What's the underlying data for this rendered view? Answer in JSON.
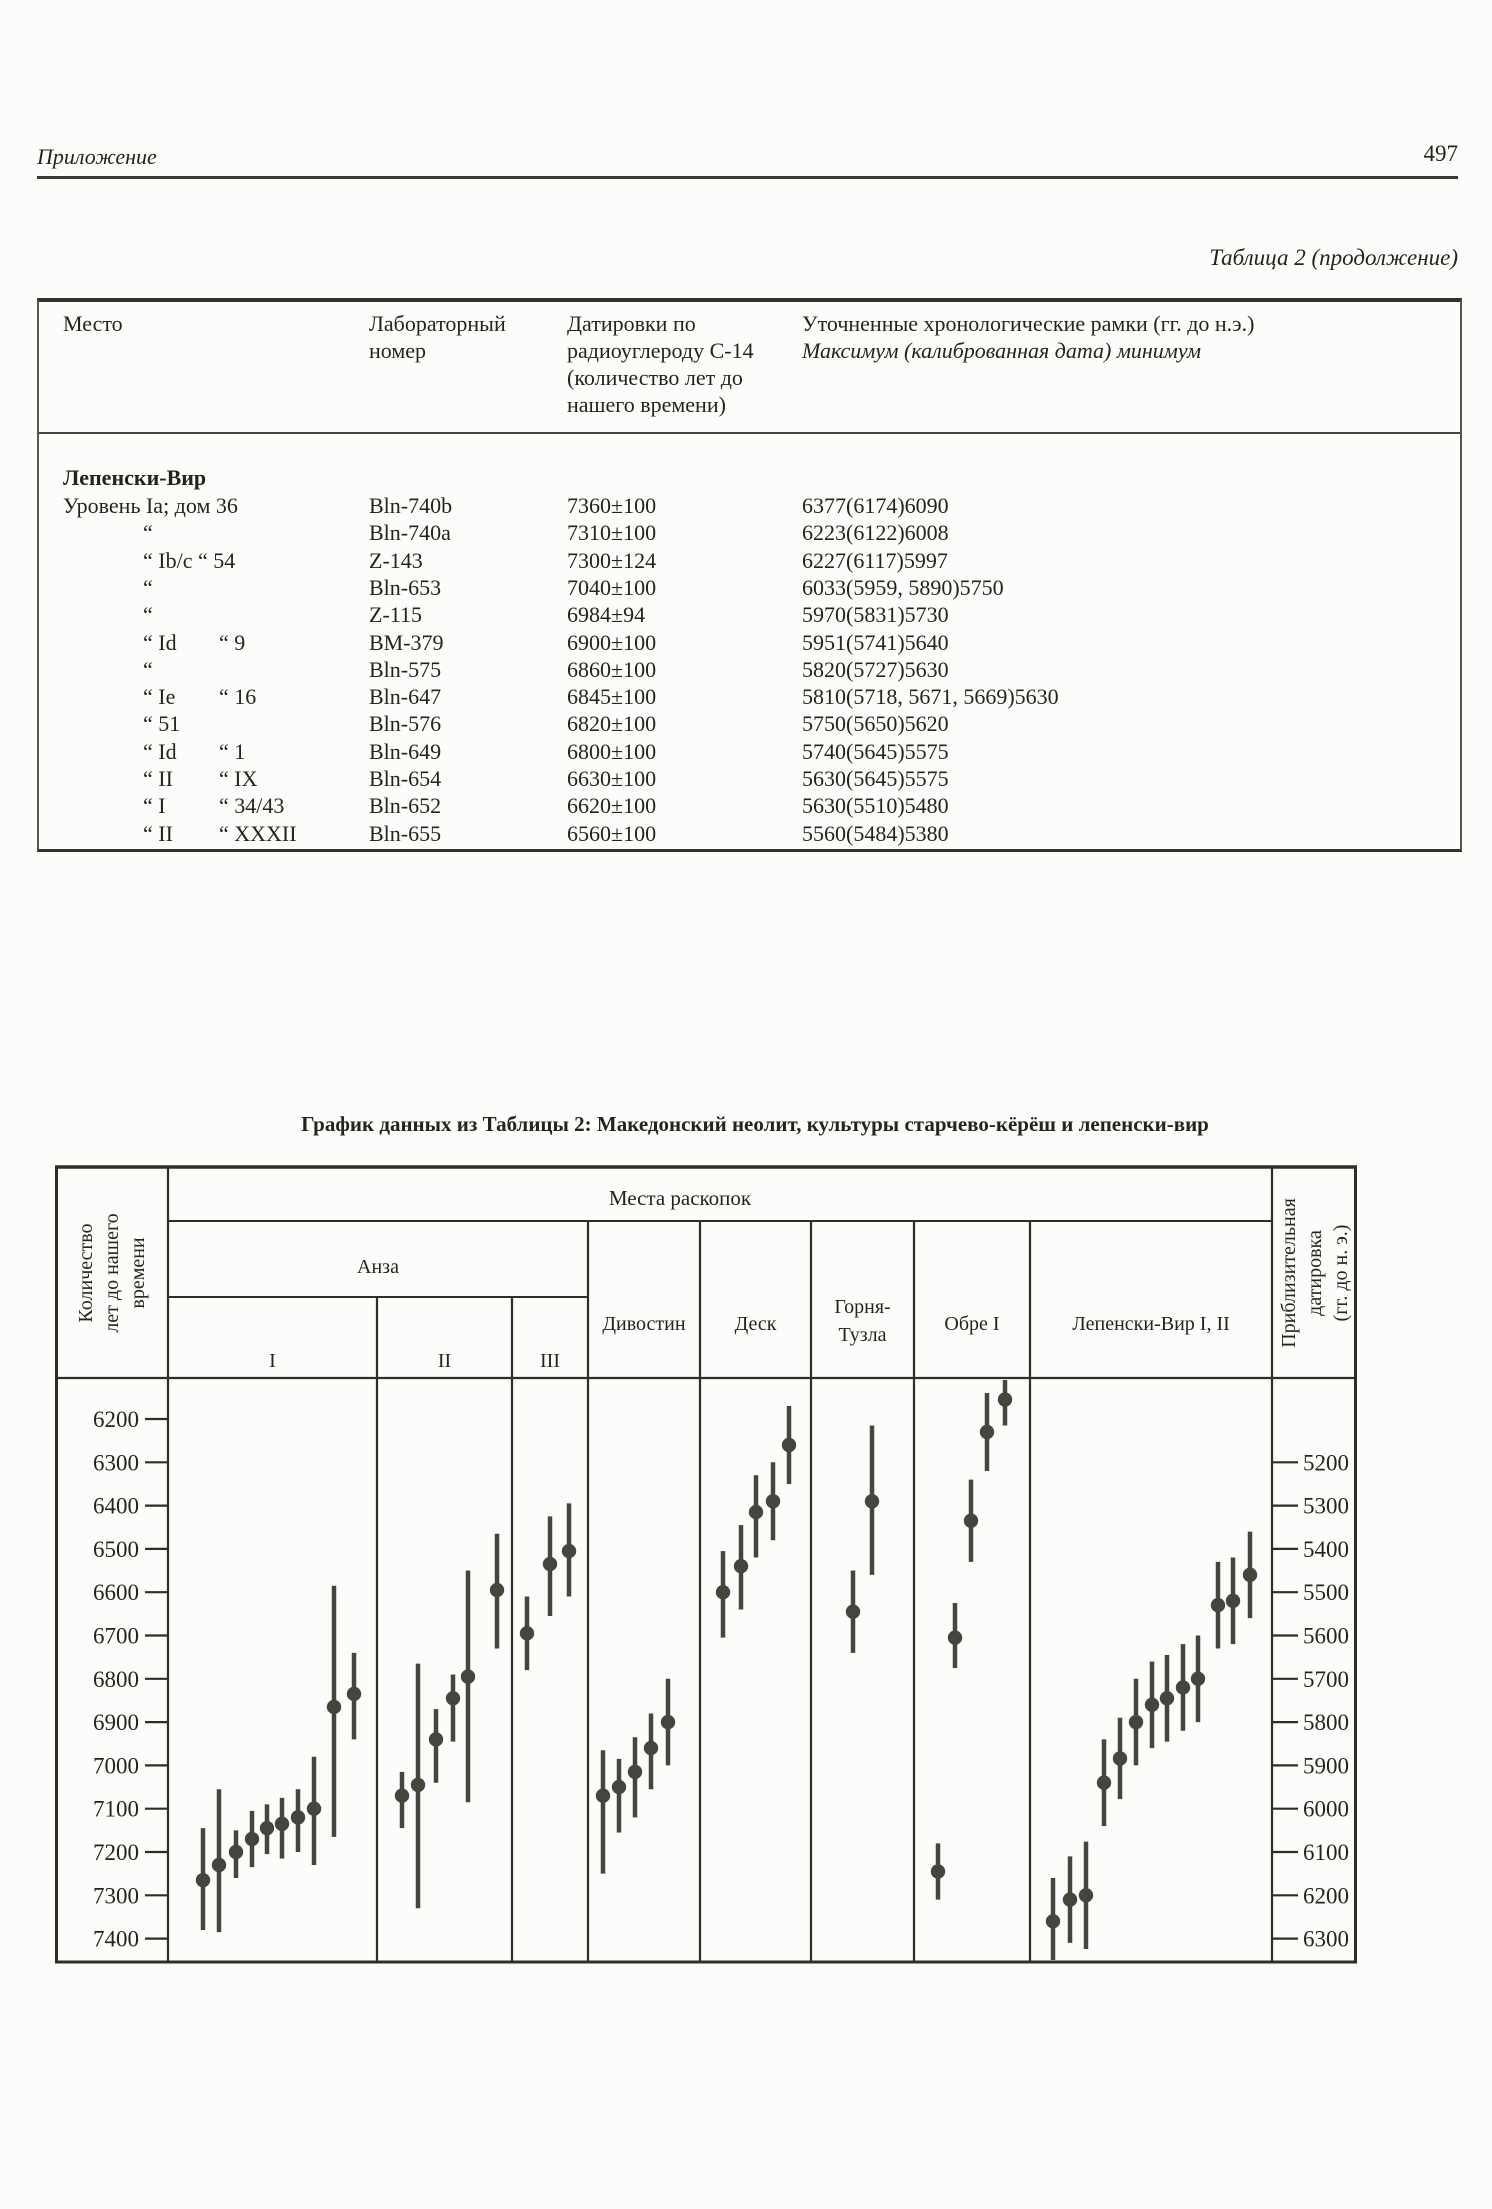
{
  "page": {
    "header_left": "Приложение",
    "page_number": "497",
    "table_caption": "Таблица 2 (продолжение)"
  },
  "table": {
    "col_headers": {
      "place": "Место",
      "lab": [
        "Лабораторный",
        "номер"
      ],
      "c14": [
        "Датировки по",
        "радиоуглероду С-14",
        "(количество лет до",
        "нашего времени)"
      ],
      "calib_line1": "Уточненные хронологические рамки (гг. до н.э.)",
      "calib_line2": "Максимум (калиброванная дата) минимум"
    },
    "section": "Лепенски-Вир",
    "rows": [
      {
        "place": "Уровень Ia; дом 36",
        "place2": "",
        "lab": "Bln-740b",
        "c14": "7360±100",
        "calib": "6377(6174)6090",
        "full": true
      },
      {
        "place": "“",
        "place2": "",
        "lab": "Bln-740a",
        "c14": "7310±100",
        "calib": "6223(6122)6008"
      },
      {
        "place": "“ Ib/c “ 54",
        "place2": "",
        "lab": "Z-143",
        "c14": "7300±124",
        "calib": "6227(6117)5997"
      },
      {
        "place": "“",
        "place2": "",
        "lab": "Bln-653",
        "c14": "7040±100",
        "calib": "6033(5959, 5890)5750"
      },
      {
        "place": "“",
        "place2": "",
        "lab": "Z-115",
        "c14": "6984±94",
        "calib": "5970(5831)5730"
      },
      {
        "place": "“ Id",
        "place2": "“ 9",
        "lab": "BM-379",
        "c14": "6900±100",
        "calib": "5951(5741)5640"
      },
      {
        "place": "“",
        "place2": "",
        "lab": "Bln-575",
        "c14": "6860±100",
        "calib": "5820(5727)5630"
      },
      {
        "place": "“ Ie",
        "place2": "“ 16",
        "lab": "Bln-647",
        "c14": "6845±100",
        "calib": "5810(5718, 5671, 5669)5630"
      },
      {
        "place": "“ 51",
        "place2": "",
        "lab": "Bln-576",
        "c14": "6820±100",
        "calib": "5750(5650)5620"
      },
      {
        "place": "“ Id",
        "place2": "“ 1",
        "lab": "Bln-649",
        "c14": "6800±100",
        "calib": "5740(5645)5575"
      },
      {
        "place": "“ II",
        "place2": "“ IX",
        "lab": "Bln-654",
        "c14": "6630±100",
        "calib": "5630(5645)5575"
      },
      {
        "place": "“ I",
        "place2": "“ 34/43",
        "lab": "Bln-652",
        "c14": "6620±100",
        "calib": "5630(5510)5480"
      },
      {
        "place": "“ II",
        "place2": "“ XXXII",
        "lab": "Bln-655",
        "c14": "6560±100",
        "calib": "5560(5484)5380"
      }
    ]
  },
  "chart_title": "График данных из Таблицы 2: Македонский неолит, культуры старчево-кёрёш и лепенски-вир",
  "chart_data": {
    "type": "scatter",
    "subtype": "dated-samples-with-error-bars",
    "title": "График данных из Таблицы 2: Македонский неолит, культуры старчево-кёрёш и лепенски-вир",
    "corner_header": "Места раскопок",
    "ylabel_left_lines": [
      "Количество",
      "лет до нашего",
      "времени"
    ],
    "ylabel_right_lines": [
      "Приблизительная",
      "датировка",
      "(гг. до н. э.)"
    ],
    "y_left_ticks": [
      6200,
      6300,
      6400,
      6500,
      6600,
      6700,
      6800,
      6900,
      7000,
      7100,
      7200,
      7300,
      7400
    ],
    "y_right_ticks": [
      5200,
      5300,
      5400,
      5500,
      5600,
      5700,
      5800,
      5900,
      6000,
      6100,
      6200,
      6300
    ],
    "y_increases_downward": true,
    "y_right_offset_years": 1100,
    "grid": false,
    "anza_group_label": "Анза",
    "ink_color": "#2e2e28",
    "point_color": "#45453d",
    "columns": [
      {
        "label": "I",
        "group": "Анза",
        "x_range": [
          113,
          322
        ],
        "points": [
          [
            148,
            7265,
            7145,
            7380
          ],
          [
            164,
            7230,
            7055,
            7385
          ],
          [
            181,
            7200,
            7150,
            7260
          ],
          [
            197,
            7170,
            7105,
            7235
          ],
          [
            212,
            7145,
            7090,
            7205
          ],
          [
            227,
            7135,
            7075,
            7215
          ],
          [
            243,
            7120,
            7055,
            7200
          ],
          [
            259,
            7100,
            6980,
            7230
          ],
          [
            279,
            6865,
            6585,
            7165
          ],
          [
            299,
            6835,
            6740,
            6940
          ]
        ]
      },
      {
        "label": "II",
        "group": "Анза",
        "x_range": [
          322,
          457
        ],
        "points": [
          [
            347,
            7070,
            7015,
            7145
          ],
          [
            363,
            7045,
            6765,
            7330
          ],
          [
            381,
            6940,
            6870,
            7040
          ],
          [
            398,
            6845,
            6790,
            6945
          ],
          [
            413,
            6795,
            6550,
            7085
          ],
          [
            442,
            6595,
            6465,
            6730
          ]
        ]
      },
      {
        "label": "III",
        "group": "Анза",
        "x_range": [
          457,
          533
        ],
        "points": [
          [
            472,
            6695,
            6610,
            6780
          ],
          [
            495,
            6535,
            6425,
            6655
          ],
          [
            514,
            6505,
            6395,
            6610
          ]
        ]
      },
      {
        "label": "Дивостин",
        "x_range": [
          533,
          645
        ],
        "points": [
          [
            548,
            7070,
            6965,
            7250
          ],
          [
            564,
            7050,
            6985,
            7155
          ],
          [
            580,
            7015,
            6935,
            7120
          ],
          [
            596,
            6960,
            6880,
            7055
          ],
          [
            613,
            6900,
            6800,
            7000
          ]
        ]
      },
      {
        "label": "Деск",
        "x_range": [
          645,
          756
        ],
        "points": [
          [
            668,
            6600,
            6505,
            6705
          ],
          [
            686,
            6540,
            6445,
            6640
          ],
          [
            701,
            6415,
            6330,
            6520
          ],
          [
            718,
            6390,
            6300,
            6480
          ],
          [
            734,
            6260,
            6170,
            6350
          ]
        ]
      },
      {
        "label": [
          "Горня-",
          "Тузла"
        ],
        "x_range": [
          756,
          859
        ],
        "points": [
          [
            798,
            6645,
            6550,
            6740
          ],
          [
            817,
            6390,
            6215,
            6560
          ]
        ]
      },
      {
        "label": "Обре I",
        "x_range": [
          859,
          975
        ],
        "points": [
          [
            883,
            7245,
            7180,
            7310
          ],
          [
            900,
            6705,
            6625,
            6775
          ],
          [
            916,
            6435,
            6340,
            6530
          ],
          [
            932,
            6230,
            6140,
            6320
          ],
          [
            950,
            6155,
            6105,
            6215
          ]
        ]
      },
      {
        "label": "Лепенски-Вир I, II",
        "x_range": [
          975,
          1217
        ],
        "points": [
          [
            998,
            7360,
            7260,
            7460
          ],
          [
            1015,
            7310,
            7210,
            7410
          ],
          [
            1031,
            7300,
            7176,
            7424
          ],
          [
            1049,
            7040,
            6940,
            7140
          ],
          [
            1065,
            6984,
            6890,
            7078
          ],
          [
            1081,
            6900,
            6800,
            7000
          ],
          [
            1097,
            6860,
            6760,
            6960
          ],
          [
            1112,
            6845,
            6745,
            6945
          ],
          [
            1128,
            6820,
            6720,
            6920
          ],
          [
            1143,
            6800,
            6700,
            6900
          ],
          [
            1163,
            6630,
            6530,
            6730
          ],
          [
            1178,
            6620,
            6520,
            6720
          ],
          [
            1195,
            6560,
            6460,
            6660
          ]
        ]
      }
    ]
  }
}
